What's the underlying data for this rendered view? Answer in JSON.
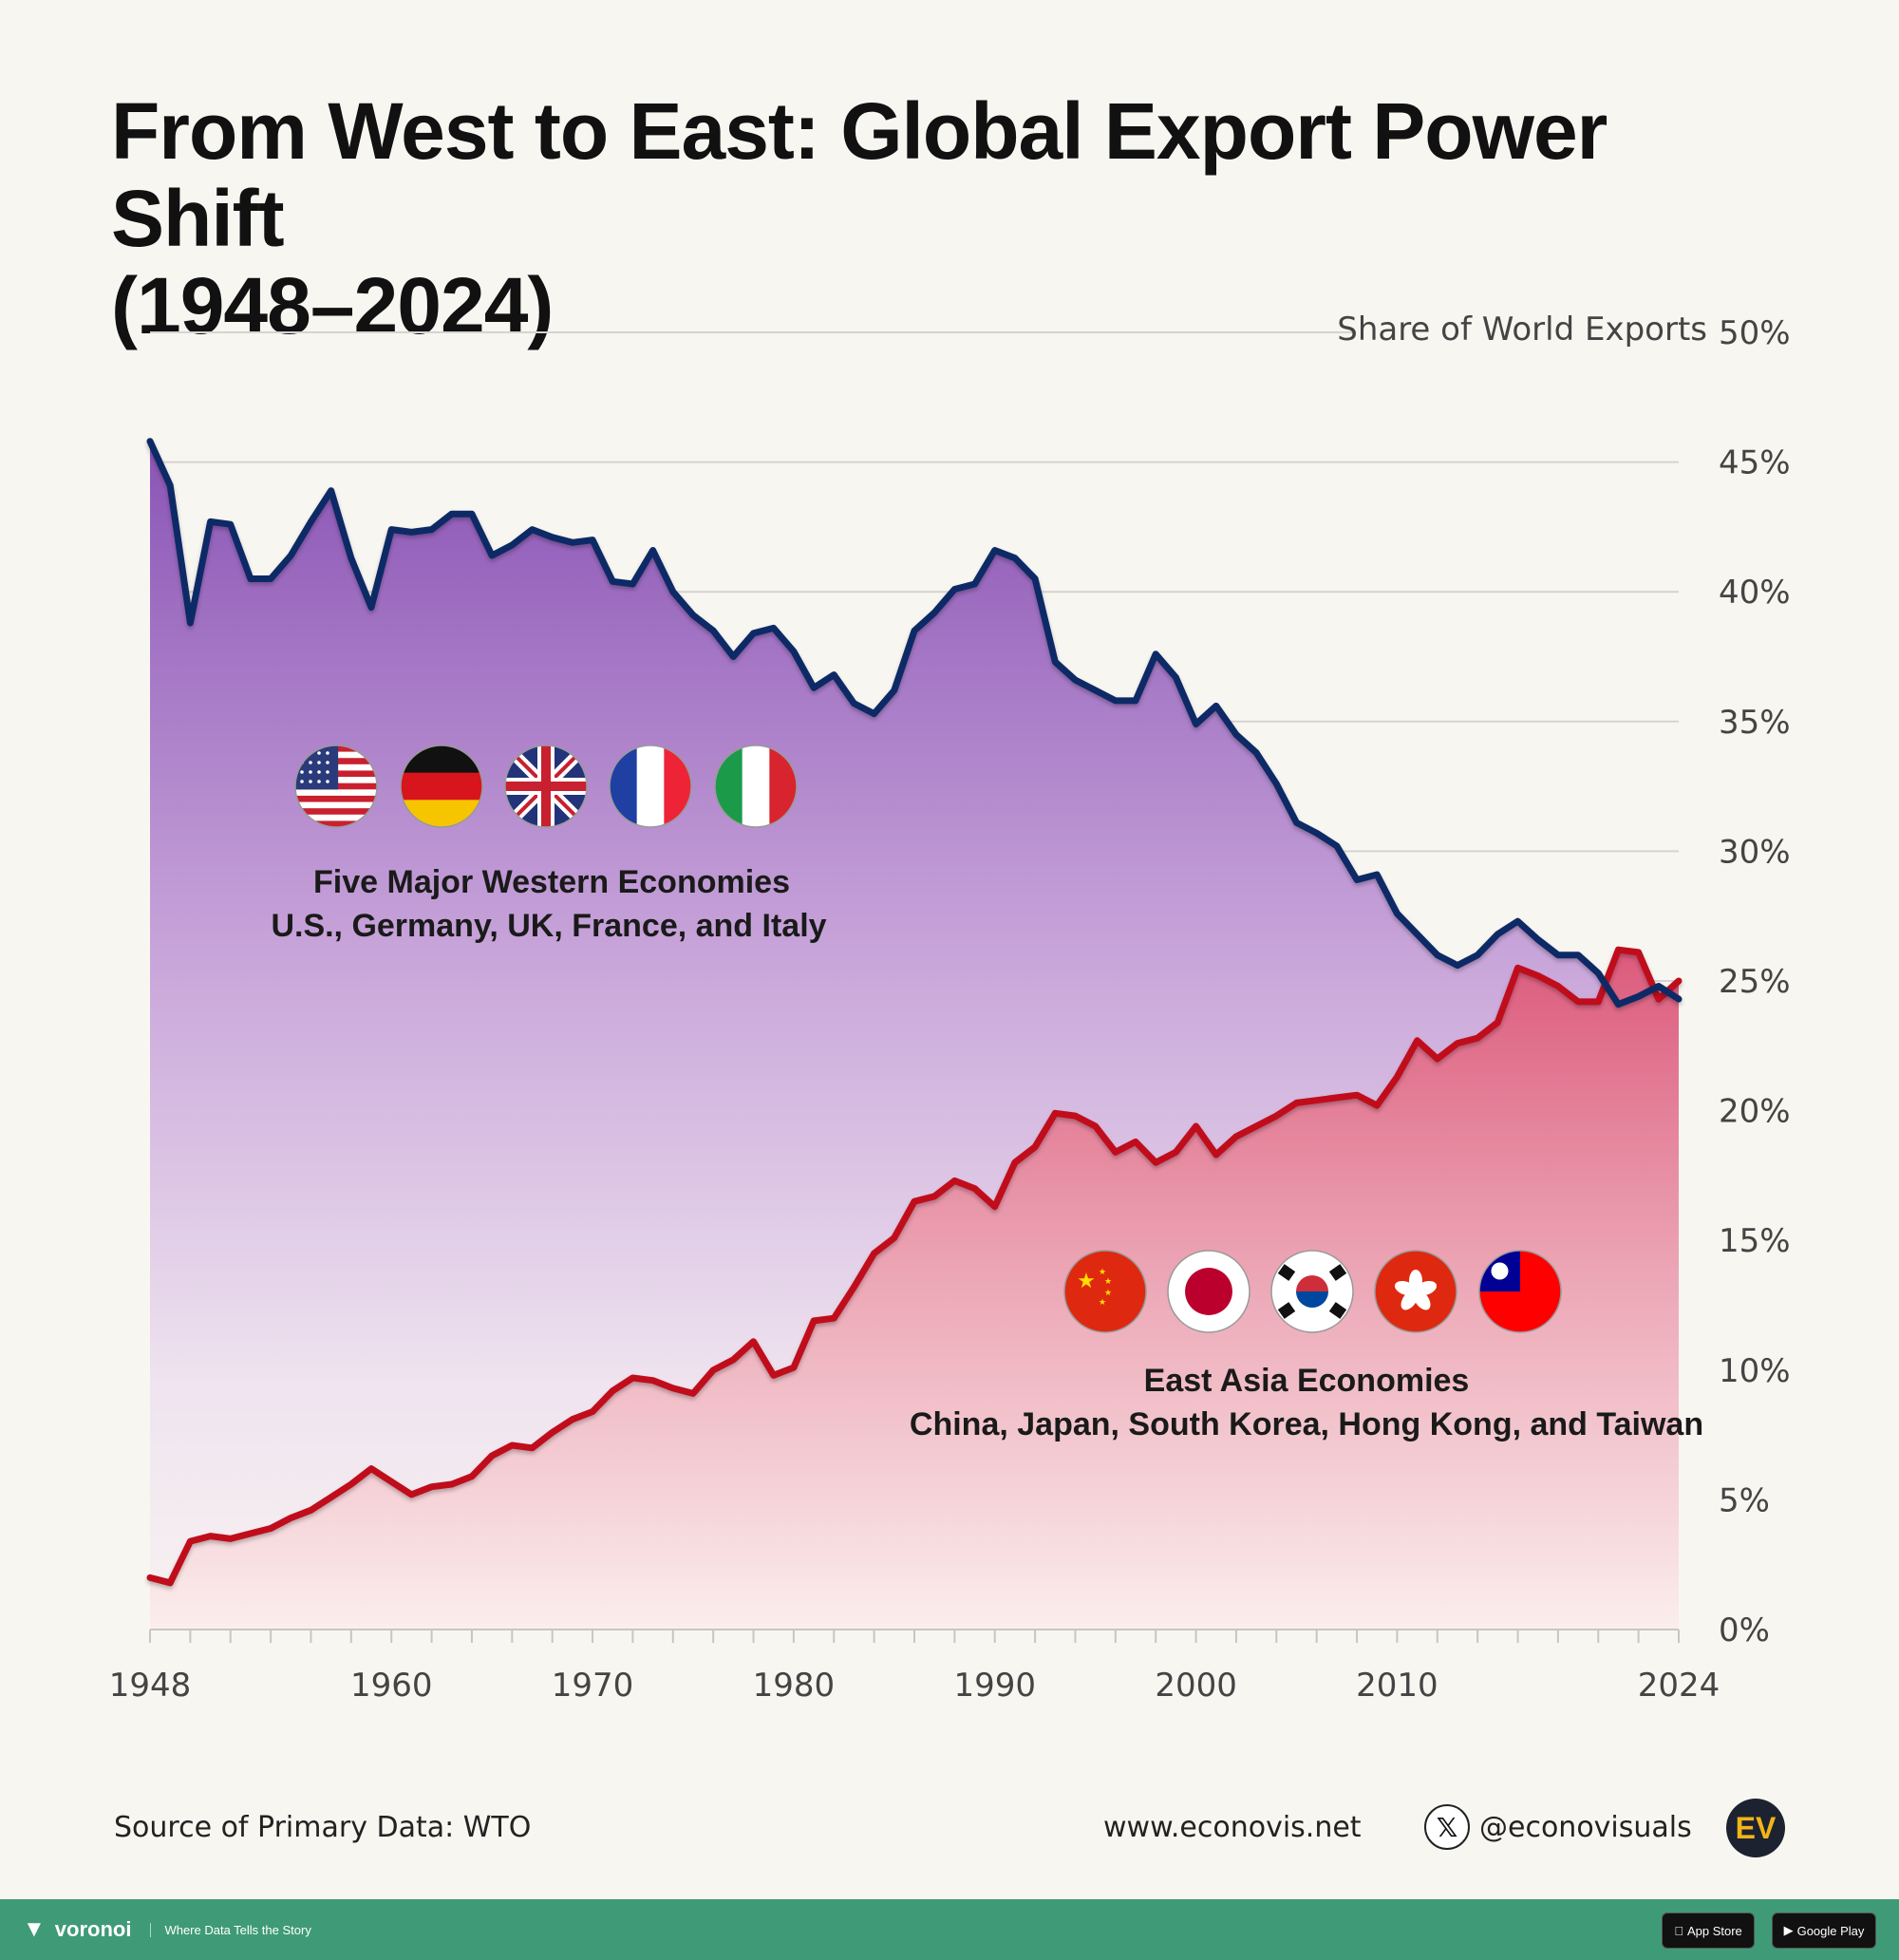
{
  "title": {
    "line1": "From West to East: Global Export Power Shift",
    "line2": "(1948–2024)"
  },
  "axis": {
    "y_title": "Share of World Exports",
    "y_ticks": [
      "0%",
      "5%",
      "10%",
      "15%",
      "20%",
      "25%",
      "30%",
      "35%",
      "40%",
      "45%",
      "50%"
    ],
    "x_ticks": [
      "1948",
      "1960",
      "1970",
      "1980",
      "1990",
      "2000",
      "2010",
      "2024"
    ]
  },
  "labels": {
    "west_title": "Five Major Western Economies",
    "west_sub": "U.S., Germany, UK, France, and Italy",
    "east_title": "East Asia Economies",
    "east_sub": "China, Japan, South Korea, Hong Kong, and Taiwan"
  },
  "flags": {
    "west": [
      "us-flag-icon",
      "germany-flag-icon",
      "uk-flag-icon",
      "france-flag-icon",
      "italy-flag-icon"
    ],
    "east": [
      "china-flag-icon",
      "japan-flag-icon",
      "south-korea-flag-icon",
      "hong-kong-flag-icon",
      "taiwan-flag-icon"
    ]
  },
  "footer": {
    "source": "Source of Primary Data: WTO",
    "website": "www.econovis.net",
    "x_symbol": "𝕏",
    "handle": "@econovisuals",
    "logo": "EV"
  },
  "bottom_bar": {
    "brand": "voronoi",
    "tagline": "Where Data Tells the Story",
    "app_store": "App Store",
    "google_play": "Google Play"
  },
  "colors": {
    "west_line": "#0d2a66",
    "east_line": "#c0101e",
    "west_fill_top": "#8750b4",
    "east_fill_top": "#d9557a"
  },
  "chart_data": {
    "type": "area",
    "title": "From West to East: Global Export Power Shift (1948–2024)",
    "ylabel": "Share of World Exports",
    "ylim": [
      0,
      50
    ],
    "xlim": [
      1948,
      2024
    ],
    "grid": true,
    "x": [
      1948,
      1949,
      1950,
      1951,
      1952,
      1953,
      1954,
      1955,
      1956,
      1957,
      1958,
      1959,
      1960,
      1961,
      1962,
      1963,
      1964,
      1965,
      1966,
      1967,
      1968,
      1969,
      1970,
      1971,
      1972,
      1973,
      1974,
      1975,
      1976,
      1977,
      1978,
      1979,
      1980,
      1981,
      1982,
      1983,
      1984,
      1985,
      1986,
      1987,
      1988,
      1989,
      1990,
      1991,
      1992,
      1993,
      1994,
      1995,
      1996,
      1997,
      1998,
      1999,
      2000,
      2001,
      2002,
      2003,
      2004,
      2005,
      2006,
      2007,
      2008,
      2009,
      2010,
      2011,
      2012,
      2013,
      2014,
      2015,
      2016,
      2017,
      2018,
      2019,
      2020,
      2021,
      2022,
      2023,
      2024
    ],
    "series": [
      {
        "name": "Five Major Western Economies",
        "values": [
          45.8,
          44.1,
          38.8,
          42.7,
          42.6,
          40.5,
          40.5,
          41.4,
          42.7,
          43.9,
          41.3,
          39.4,
          42.4,
          42.3,
          42.4,
          43.0,
          43.0,
          41.4,
          41.8,
          42.4,
          42.1,
          41.9,
          42.0,
          40.4,
          40.3,
          41.6,
          40.0,
          39.1,
          38.5,
          37.5,
          38.4,
          38.6,
          37.7,
          36.3,
          36.8,
          35.7,
          35.3,
          36.2,
          38.5,
          39.2,
          40.1,
          40.3,
          41.6,
          41.3,
          40.5,
          37.3,
          36.6,
          36.2,
          35.8,
          35.8,
          37.6,
          36.7,
          34.9,
          35.6,
          34.5,
          33.8,
          32.6,
          31.1,
          30.7,
          30.2,
          28.9,
          29.1,
          27.6,
          26.8,
          26.0,
          25.6,
          26.0,
          26.8,
          27.3,
          26.6,
          26.0,
          26.0,
          25.3,
          24.1,
          24.4,
          24.8,
          24.3
        ]
      },
      {
        "name": "East Asia Economies",
        "values": [
          2.0,
          1.8,
          3.4,
          3.6,
          3.5,
          3.7,
          3.9,
          4.3,
          4.6,
          5.1,
          5.6,
          6.2,
          5.7,
          5.2,
          5.5,
          5.6,
          5.9,
          6.7,
          7.1,
          7.0,
          7.6,
          8.1,
          8.4,
          9.2,
          9.7,
          9.6,
          9.3,
          9.1,
          10.0,
          10.4,
          11.1,
          9.8,
          10.1,
          11.9,
          12.0,
          13.2,
          14.5,
          15.1,
          16.5,
          16.7,
          17.3,
          17.0,
          16.3,
          18.0,
          18.6,
          19.9,
          19.8,
          19.4,
          18.4,
          18.8,
          18.0,
          18.4,
          19.4,
          18.3,
          19.0,
          19.4,
          19.8,
          20.3,
          20.4,
          20.5,
          20.6,
          20.2,
          21.3,
          22.7,
          22.0,
          22.6,
          22.8,
          23.4,
          25.5,
          25.2,
          24.8,
          24.2,
          24.2,
          26.2,
          26.1,
          24.3,
          25.0
        ]
      }
    ]
  }
}
